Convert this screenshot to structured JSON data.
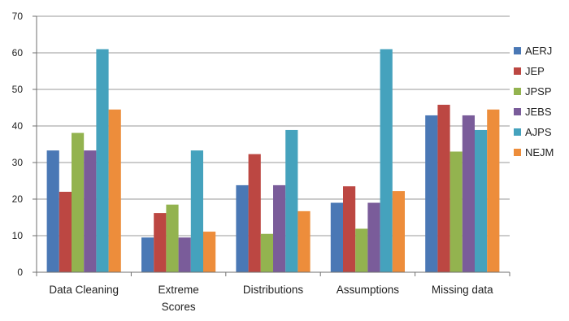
{
  "chart_data": {
    "type": "bar",
    "title": "",
    "xlabel": "",
    "ylabel": "",
    "ylim": [
      0,
      70
    ],
    "yticks": [
      0,
      10,
      20,
      30,
      40,
      50,
      60,
      70
    ],
    "grid": true,
    "legend_position": "right",
    "categories": [
      [
        "Data Cleaning"
      ],
      [
        "Extreme",
        "Scores"
      ],
      [
        "Distributions"
      ],
      [
        "Assumptions"
      ],
      [
        "Missing data"
      ]
    ],
    "series": [
      {
        "name": "AERJ",
        "color": "#4a78b5",
        "values": [
          33.3,
          9.5,
          23.8,
          19.0,
          42.9
        ]
      },
      {
        "name": "JEP",
        "color": "#bc4742",
        "values": [
          22.0,
          16.2,
          32.3,
          23.5,
          45.8
        ]
      },
      {
        "name": "JPSP",
        "color": "#93b34f",
        "values": [
          38.1,
          18.5,
          10.5,
          11.9,
          33.0
        ]
      },
      {
        "name": "JEBS",
        "color": "#7a5c9a",
        "values": [
          33.3,
          9.5,
          23.8,
          19.0,
          42.9
        ]
      },
      {
        "name": "AJPS",
        "color": "#45a2bd",
        "values": [
          61.0,
          33.3,
          38.9,
          61.0,
          38.9
        ]
      },
      {
        "name": "NEJM",
        "color": "#ed8d3b",
        "values": [
          44.5,
          11.1,
          16.7,
          22.2,
          44.5
        ]
      }
    ]
  }
}
